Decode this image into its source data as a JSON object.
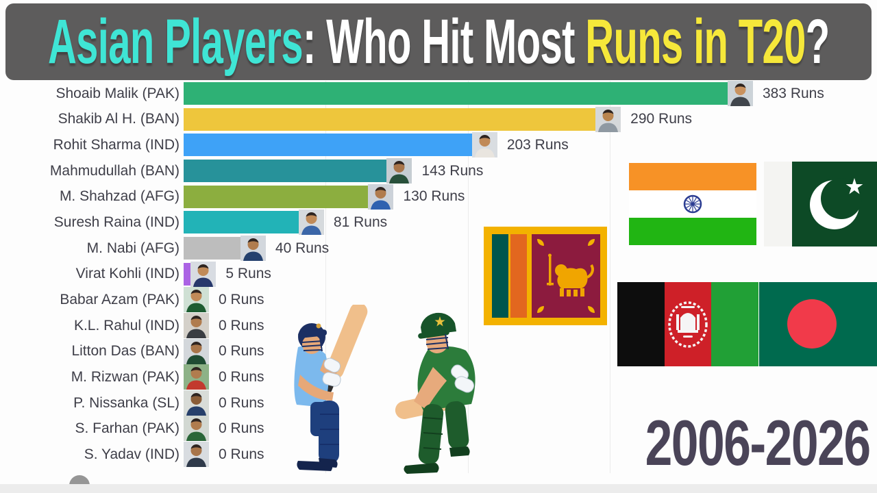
{
  "header": {
    "background": "#5d5c5c",
    "segments": [
      {
        "text": "Asian Players",
        "color": "#3fe5d5"
      },
      {
        "text": ": ",
        "color": "#ffffff"
      },
      {
        "text": "Who Hit Most ",
        "color": "#ffffff"
      },
      {
        "text": "Runs in T20",
        "color": "#f6e83a"
      },
      {
        "text": "?",
        "color": "#ffffff"
      }
    ]
  },
  "period": {
    "label": "2006-2026",
    "color": "#4a4458"
  },
  "chart_data": {
    "type": "bar",
    "orientation": "horizontal",
    "title": "Asian Players: Who Hit Most Runs in T20?",
    "unit": "Runs",
    "xlim": [
      0,
      400
    ],
    "gridlines_runs": [
      100,
      200,
      300
    ],
    "grid_color": "#ebebeb",
    "label_color": "#3e3e48",
    "categories": [
      "Shoaib Malik (PAK)",
      "Shakib Al H. (BAN)",
      "Rohit Sharma (IND)",
      "Mahmudullah (BAN)",
      "M. Shahzad (AFG)",
      "Suresh Raina (IND)",
      "M. Nabi (AFG)",
      "Virat Kohli (IND)",
      "Babar Azam (PAK)",
      "K.L. Rahul (IND)",
      "Litton Das (BAN)",
      "M. Rizwan (PAK)",
      "P. Nissanka (SL)",
      "S. Farhan (PAK)",
      "S. Yadav (IND)"
    ],
    "values": [
      383,
      290,
      203,
      143,
      130,
      81,
      40,
      5,
      0,
      0,
      0,
      0,
      0,
      0,
      0
    ],
    "players": [
      {
        "name": "Shoaib Malik (PAK)",
        "runs": 383,
        "value_label": "383 Runs",
        "bar_color": "#2eb175",
        "avatar": {
          "bg": "#ccd3d8",
          "jersey": "#41464c",
          "skin": "#c9925f"
        }
      },
      {
        "name": "Shakib Al H. (BAN)",
        "runs": 290,
        "value_label": "290 Runs",
        "bar_color": "#eec63c",
        "avatar": {
          "bg": "#d5d8da",
          "jersey": "#8f99a2",
          "skin": "#b9854f"
        }
      },
      {
        "name": "Rohit Sharma (IND)",
        "runs": 203,
        "value_label": "203 Runs",
        "bar_color": "#3ea2f7",
        "avatar": {
          "bg": "#d9dde1",
          "jersey": "#e9e5df",
          "skin": "#c08a58"
        }
      },
      {
        "name": "Mahmudullah (BAN)",
        "runs": 143,
        "value_label": "143 Runs",
        "bar_color": "#27929a",
        "avatar": {
          "bg": "#c6cdd2",
          "jersey": "#28503a",
          "skin": "#a8754a"
        }
      },
      {
        "name": "M. Shahzad (AFG)",
        "runs": 130,
        "value_label": "130 Runs",
        "bar_color": "#8cae3f",
        "avatar": {
          "bg": "#ccd2d9",
          "jersey": "#2f62b0",
          "skin": "#b07c4e"
        }
      },
      {
        "name": "Suresh Raina (IND)",
        "runs": 81,
        "value_label": "81 Runs",
        "bar_color": "#22b3b7",
        "avatar": {
          "bg": "#d6dadd",
          "jersey": "#3b66a8",
          "skin": "#c08a58"
        }
      },
      {
        "name": "M. Nabi (AFG)",
        "runs": 40,
        "value_label": "40 Runs",
        "bar_color": "#bdbdbd",
        "avatar": {
          "bg": "#d2d7dd",
          "jersey": "#24406e",
          "skin": "#b07c4e"
        }
      },
      {
        "name": "Virat Kohli (IND)",
        "runs": 5,
        "value_label": "5 Runs",
        "bar_color": "#ab63e4",
        "avatar": {
          "bg": "#d8dce2",
          "jersey": "#27386b",
          "skin": "#c08a58"
        }
      },
      {
        "name": "Babar Azam (PAK)",
        "runs": 0,
        "value_label": "0 Runs",
        "bar_color": "#2eb175",
        "avatar": {
          "bg": "#cfe0d4",
          "jersey": "#1d5c31",
          "skin": "#c08a58"
        }
      },
      {
        "name": "K.L. Rahul (IND)",
        "runs": 0,
        "value_label": "0 Runs",
        "bar_color": "#3ea2f7",
        "avatar": {
          "bg": "#d4d0c9",
          "jersey": "#3a3d42",
          "skin": "#b07c4e"
        }
      },
      {
        "name": "Litton Das (BAN)",
        "runs": 0,
        "value_label": "0 Runs",
        "bar_color": "#27929a",
        "avatar": {
          "bg": "#d3d7db",
          "jersey": "#1f4c33",
          "skin": "#a8754a"
        }
      },
      {
        "name": "M. Rizwan (PAK)",
        "runs": 0,
        "value_label": "0 Runs",
        "bar_color": "#2eb175",
        "avatar": {
          "bg": "#8db287",
          "jersey": "#c23a2e",
          "skin": "#b07c4e"
        }
      },
      {
        "name": "P. Nissanka (SL)",
        "runs": 0,
        "value_label": "0 Runs",
        "bar_color": "#eec63c",
        "avatar": {
          "bg": "#d8dcd8",
          "jersey": "#27406b",
          "skin": "#8a5d38"
        }
      },
      {
        "name": "S. Farhan (PAK)",
        "runs": 0,
        "value_label": "0 Runs",
        "bar_color": "#2eb175",
        "avatar": {
          "bg": "#d2d8d2",
          "jersey": "#2a6638",
          "skin": "#b07c4e"
        }
      },
      {
        "name": "S. Yadav (IND)",
        "runs": 0,
        "value_label": "0 Runs",
        "bar_color": "#3ea2f7",
        "avatar": {
          "bg": "#d8dce0",
          "jersey": "#2f3a4a",
          "skin": "#a8754a"
        }
      }
    ]
  },
  "flags": {
    "sri_lanka": {
      "name": "Sri Lanka",
      "gold": "#f3b200",
      "green": "#00564d",
      "orange": "#e2671f",
      "maroon": "#8c1b3e",
      "lion": "#f0a500"
    },
    "india": {
      "name": "India",
      "saffron": "#f79226",
      "white": "#ffffff",
      "green": "#21b513",
      "chakra": "#2b3c92"
    },
    "pakistan": {
      "name": "Pakistan",
      "green": "#0d4a26",
      "white": "#f4f4f2",
      "symbol": "#ffffff"
    },
    "afghanistan": {
      "name": "Afghanistan",
      "black": "#0d0d0d",
      "red": "#ce2028",
      "green": "#21a036",
      "emblem": "#f5f5f5"
    },
    "bangladesh": {
      "name": "Bangladesh",
      "green": "#006a4e",
      "red": "#f13a4a"
    }
  },
  "illustrations": {
    "left_batsman": {
      "label": "batsman in blue kit (India)",
      "helmet": "#1c2f63",
      "jersey": "#7cb9ed",
      "pads": "#1e3f7d",
      "bat": "#f0bf8b",
      "skin": "#e6a878",
      "gloves": "#f3f6f9",
      "shoes": "#14244d",
      "accent": "#d9a43c"
    },
    "right_batsman": {
      "label": "batsman in green kit (Pakistan)",
      "helmet": "#17542a",
      "jersey": "#2c7c3b",
      "pads": "#1e5c2c",
      "bat": "#f0bf8b",
      "skin": "#e7aa7c",
      "gloves": "#f3f6f9",
      "shoes": "#123f1e",
      "star": "#e8c03c",
      "grille": "#1c2f63"
    }
  },
  "footer": {
    "bar_color": "#ececec",
    "circle_color": "#969696"
  }
}
